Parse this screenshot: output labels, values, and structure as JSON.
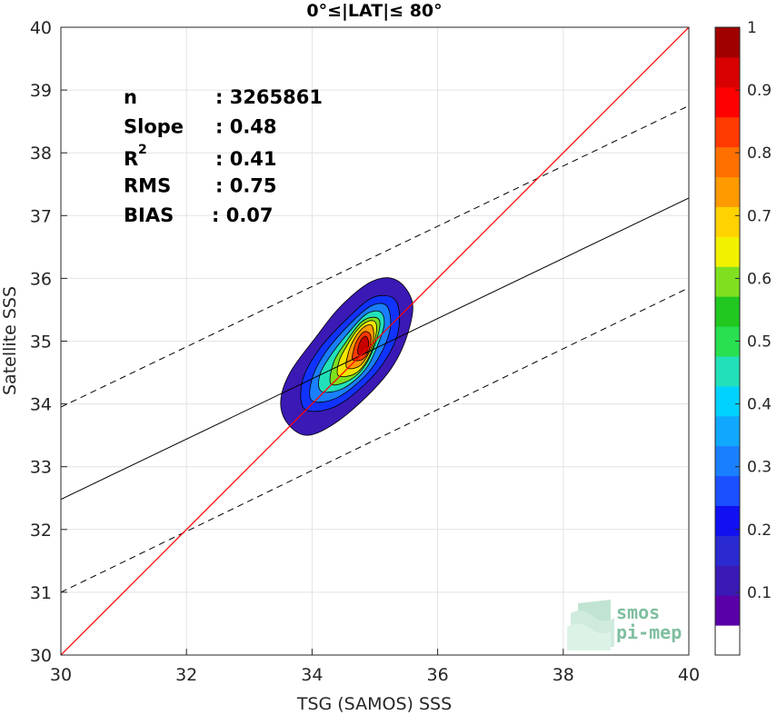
{
  "chart_data": {
    "type": "scatter",
    "title": "0°≤|LAT|≤ 80°",
    "xlabel": "TSG (SAMOS) SSS",
    "ylabel": "Satellite SSS",
    "xlim": [
      30,
      40
    ],
    "ylim": [
      30,
      40
    ],
    "xticks": [
      "30",
      "32",
      "34",
      "36",
      "38",
      "40"
    ],
    "yticks": [
      "30",
      "31",
      "32",
      "33",
      "34",
      "35",
      "36",
      "37",
      "38",
      "39",
      "40"
    ],
    "grid": true,
    "stats": [
      {
        "label": "n",
        "value": ": 3265861"
      },
      {
        "label": "Slope",
        "value": ": 0.48"
      },
      {
        "label": "R",
        "sup": "2",
        "value": ": 0.41"
      },
      {
        "label": "RMS",
        "value": ": 0.75"
      },
      {
        "label": "BIAS",
        "value": ": 0.07"
      }
    ],
    "one_to_one_line": {
      "x": [
        30,
        40
      ],
      "y": [
        30,
        40
      ],
      "color": "#ff0000"
    },
    "regression_line": {
      "x": [
        30,
        40
      ],
      "y": [
        32.48,
        37.28
      ],
      "color": "#000000"
    },
    "regression_bounds": [
      {
        "x": [
          30,
          40
        ],
        "y": [
          33.95,
          38.75
        ]
      },
      {
        "x": [
          30,
          40
        ],
        "y": [
          31.0,
          35.85
        ]
      }
    ],
    "density_contours": [
      {
        "level": 0.05,
        "color": "#3a19b5",
        "points": [
          [
            33.6,
            33.7
          ],
          [
            33.9,
            33.5
          ],
          [
            34.3,
            33.65
          ],
          [
            34.8,
            34.05
          ],
          [
            35.25,
            34.55
          ],
          [
            35.5,
            35.05
          ],
          [
            35.6,
            35.6
          ],
          [
            35.35,
            35.97
          ],
          [
            34.95,
            35.95
          ],
          [
            34.45,
            35.55
          ],
          [
            34.05,
            35.05
          ],
          [
            33.65,
            34.5
          ],
          [
            33.5,
            34.05
          ]
        ]
      },
      {
        "level": 0.15,
        "color": "#1133ff",
        "points": [
          [
            33.88,
            33.92
          ],
          [
            34.35,
            33.95
          ],
          [
            34.85,
            34.32
          ],
          [
            35.2,
            34.75
          ],
          [
            35.38,
            35.2
          ],
          [
            35.33,
            35.65
          ],
          [
            34.98,
            35.7
          ],
          [
            34.55,
            35.35
          ],
          [
            34.12,
            34.88
          ],
          [
            33.85,
            34.38
          ]
        ]
      },
      {
        "level": 0.3,
        "color": "#1a7fff",
        "points": [
          [
            34.0,
            34.05
          ],
          [
            34.4,
            34.1
          ],
          [
            34.85,
            34.45
          ],
          [
            35.12,
            34.85
          ],
          [
            35.25,
            35.25
          ],
          [
            35.18,
            35.57
          ],
          [
            34.92,
            35.55
          ],
          [
            34.55,
            35.22
          ],
          [
            34.2,
            34.8
          ],
          [
            34.0,
            34.4
          ]
        ]
      },
      {
        "level": 0.45,
        "color": "#22e0b8",
        "points": [
          [
            34.15,
            34.2
          ],
          [
            34.5,
            34.25
          ],
          [
            34.85,
            34.55
          ],
          [
            35.05,
            34.95
          ],
          [
            35.15,
            35.28
          ],
          [
            35.08,
            35.47
          ],
          [
            34.85,
            35.42
          ],
          [
            34.55,
            35.1
          ],
          [
            34.28,
            34.75
          ],
          [
            34.12,
            34.45
          ]
        ]
      },
      {
        "level": 0.55,
        "color": "#7fe020",
        "points": [
          [
            34.3,
            34.32
          ],
          [
            34.6,
            34.38
          ],
          [
            34.85,
            34.62
          ],
          [
            35.02,
            35.0
          ],
          [
            35.08,
            35.3
          ],
          [
            34.98,
            35.38
          ],
          [
            34.78,
            35.3
          ],
          [
            34.55,
            35.0
          ],
          [
            34.35,
            34.68
          ]
        ]
      },
      {
        "level": 0.65,
        "color": "#f2e600",
        "points": [
          [
            34.42,
            34.45
          ],
          [
            34.68,
            34.48
          ],
          [
            34.88,
            34.7
          ],
          [
            35.0,
            35.02
          ],
          [
            35.02,
            35.28
          ],
          [
            34.9,
            35.32
          ],
          [
            34.72,
            35.18
          ],
          [
            34.55,
            34.92
          ],
          [
            34.43,
            34.68
          ]
        ]
      },
      {
        "level": 0.75,
        "color": "#ff9a00",
        "points": [
          [
            34.55,
            34.58
          ],
          [
            34.75,
            34.6
          ],
          [
            34.9,
            34.8
          ],
          [
            34.98,
            35.05
          ],
          [
            34.95,
            35.25
          ],
          [
            34.82,
            35.22
          ],
          [
            34.68,
            35.05
          ],
          [
            34.58,
            34.82
          ]
        ]
      },
      {
        "level": 0.85,
        "color": "#ff3a00",
        "points": [
          [
            34.65,
            34.7
          ],
          [
            34.82,
            34.72
          ],
          [
            34.92,
            34.9
          ],
          [
            34.93,
            35.1
          ],
          [
            34.83,
            35.15
          ],
          [
            34.72,
            35.02
          ],
          [
            34.66,
            34.85
          ]
        ]
      },
      {
        "level": 0.95,
        "color": "#c80000",
        "points": [
          [
            34.73,
            34.8
          ],
          [
            34.86,
            34.82
          ],
          [
            34.9,
            34.98
          ],
          [
            34.85,
            35.08
          ],
          [
            34.76,
            34.98
          ]
        ]
      }
    ],
    "colorbar": {
      "ticks": [
        "0.1",
        "0.2",
        "0.3",
        "0.4",
        "0.5",
        "0.6",
        "0.7",
        "0.8",
        "0.9",
        "1"
      ],
      "colors": [
        "#ffffff",
        "#5a00a8",
        "#3a19b5",
        "#2a2ad0",
        "#1010f0",
        "#1a50ff",
        "#1a7fff",
        "#10a8ff",
        "#00d2ff",
        "#22e0b8",
        "#28e050",
        "#20c820",
        "#7fe020",
        "#f2f200",
        "#ffd200",
        "#ff9a00",
        "#ff7000",
        "#ff3a00",
        "#ff0000",
        "#d80000",
        "#a00000"
      ]
    },
    "logo": [
      "smos",
      "pi-mep"
    ]
  }
}
